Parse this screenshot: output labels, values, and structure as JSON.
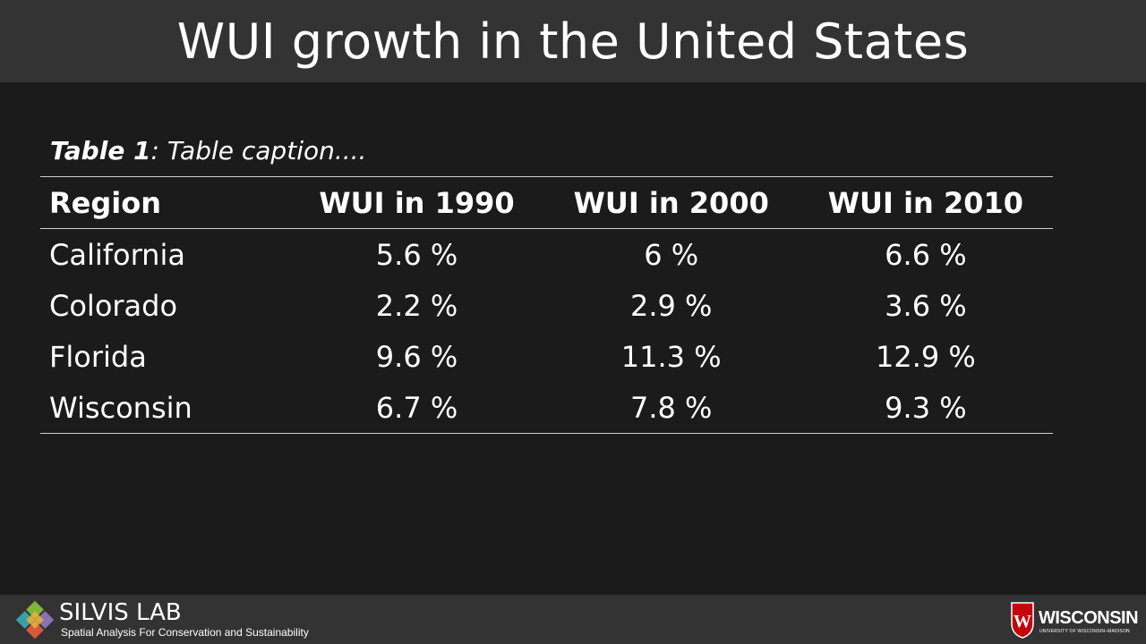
{
  "slide": {
    "title": "WUI growth in the United States"
  },
  "caption": {
    "label": "Table 1",
    "text": ": Table caption...."
  },
  "table": {
    "headers": [
      "Region",
      "WUI in 1990",
      "WUI in 2000",
      "WUI in 2010"
    ],
    "rows": [
      [
        "California",
        "5.6 %",
        "6 %",
        "6.6 %"
      ],
      [
        "Colorado",
        "2.2 %",
        "2.9 %",
        "3.6 %"
      ],
      [
        "Florida",
        "9.6 %",
        "11.3 %",
        "12.9 %"
      ],
      [
        "Wisconsin",
        "6.7 %",
        "7.8 %",
        "9.3 %"
      ]
    ]
  },
  "footer": {
    "lab_name": "SILVIS LAB",
    "lab_subtitle": "Spatial Analysis For Conservation and Sustainability",
    "uw_name": "WISCONSIN",
    "uw_subtitle": "UNIVERSITY OF WISCONSIN–MADISON",
    "uw_crest_letter": "W"
  },
  "colors": {
    "background": "#1b1b1b",
    "bar": "#333333",
    "text": "#ffffff",
    "rule": "#cfcfcf",
    "crest_red": "#c5050c"
  }
}
